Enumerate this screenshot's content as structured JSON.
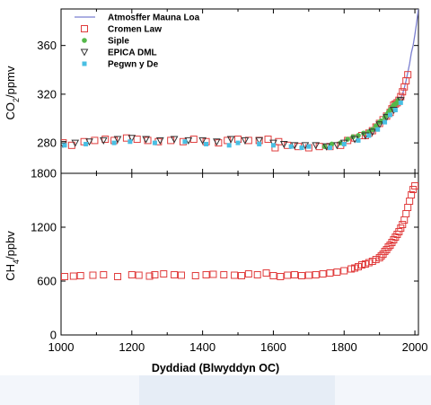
{
  "chart_data": [
    {
      "type": "scatter",
      "ylabel": "CO2/ppmv",
      "ylabel_main": "CO",
      "ylabel_sub": "2",
      "ylabel_unit": "/ppmv",
      "xlim": [
        1000,
        2010
      ],
      "ylim": [
        255,
        390
      ],
      "yticks": [
        280,
        320,
        360
      ],
      "ytick_labels": [
        "280",
        "320",
        "360"
      ],
      "legend_position": "top-center",
      "series": [
        {
          "name": "Atmosffer Mauna Loa",
          "marker": "line",
          "color": "#7b7fd0",
          "points": [
            [
              1958,
              315
            ],
            [
              1965,
              320
            ],
            [
              1970,
              325
            ],
            [
              1975,
              331
            ],
            [
              1980,
              338
            ],
            [
              1985,
              345
            ],
            [
              1990,
              354
            ],
            [
              1995,
              360
            ],
            [
              2000,
              369
            ],
            [
              2005,
              379
            ],
            [
              2010,
              390
            ]
          ]
        },
        {
          "name": "Cromen Law",
          "marker": "open-square",
          "color": "#e03c3c",
          "points": [
            [
              1006,
              280
            ],
            [
              1030,
              278
            ],
            [
              1065,
              281
            ],
            [
              1095,
              282
            ],
            [
              1125,
              283
            ],
            [
              1150,
              282
            ],
            [
              1185,
              284
            ],
            [
              1215,
              283
            ],
            [
              1245,
              282
            ],
            [
              1275,
              281
            ],
            [
              1310,
              282
            ],
            [
              1345,
              281
            ],
            [
              1375,
              283
            ],
            [
              1410,
              281
            ],
            [
              1445,
              280
            ],
            [
              1470,
              282
            ],
            [
              1500,
              283
            ],
            [
              1530,
              282
            ],
            [
              1560,
              282
            ],
            [
              1585,
              283
            ],
            [
              1605,
              276
            ],
            [
              1615,
              281
            ],
            [
              1640,
              278
            ],
            [
              1670,
              277
            ],
            [
              1700,
              276
            ],
            [
              1730,
              277
            ],
            [
              1760,
              277
            ],
            [
              1790,
              278
            ],
            [
              1810,
              282
            ],
            [
              1830,
              284
            ],
            [
              1850,
              286
            ],
            [
              1860,
              286
            ],
            [
              1870,
              288
            ],
            [
              1880,
              290
            ],
            [
              1890,
              293
            ],
            [
              1900,
              296
            ],
            [
              1910,
              299
            ],
            [
              1920,
              302
            ],
            [
              1930,
              305
            ],
            [
              1935,
              308
            ],
            [
              1940,
              311
            ],
            [
              1945,
              312
            ],
            [
              1950,
              313
            ],
            [
              1955,
              315
            ],
            [
              1960,
              318
            ],
            [
              1965,
              322
            ],
            [
              1970,
              326
            ],
            [
              1975,
              331
            ],
            [
              1980,
              336
            ]
          ]
        },
        {
          "name": "Siple",
          "marker": "filled-circle",
          "color": "#55b84a",
          "points": [
            [
              1745,
              277
            ],
            [
              1765,
              279
            ],
            [
              1790,
              280
            ],
            [
              1810,
              283
            ],
            [
              1825,
              285
            ],
            [
              1840,
              286
            ],
            [
              1855,
              288
            ],
            [
              1870,
              289
            ],
            [
              1880,
              291
            ],
            [
              1890,
              294
            ],
            [
              1900,
              297
            ],
            [
              1905,
              298
            ],
            [
              1915,
              301
            ],
            [
              1920,
              303
            ],
            [
              1925,
              305
            ],
            [
              1930,
              307
            ],
            [
              1935,
              309
            ],
            [
              1940,
              311
            ],
            [
              1945,
              312
            ],
            [
              1950,
              313
            ],
            [
              1953,
              315
            ]
          ]
        },
        {
          "name": "EPICA DML",
          "marker": "open-triangle-down",
          "color": "#333333",
          "points": [
            [
              1005,
              279
            ],
            [
              1040,
              280
            ],
            [
              1080,
              281
            ],
            [
              1120,
              282
            ],
            [
              1160,
              283
            ],
            [
              1200,
              284
            ],
            [
              1240,
              283
            ],
            [
              1280,
              282
            ],
            [
              1320,
              283
            ],
            [
              1360,
              282
            ],
            [
              1400,
              282
            ],
            [
              1440,
              281
            ],
            [
              1480,
              283
            ],
            [
              1520,
              282
            ],
            [
              1560,
              282
            ],
            [
              1600,
              280
            ],
            [
              1630,
              279
            ],
            [
              1660,
              278
            ],
            [
              1690,
              278
            ],
            [
              1720,
              278
            ],
            [
              1750,
              277
            ],
            [
              1780,
              278
            ],
            [
              1800,
              280
            ],
            [
              1830,
              283
            ],
            [
              1860,
              286
            ],
            [
              1880,
              289
            ],
            [
              1900,
              295
            ],
            [
              1920,
              301
            ],
            [
              1940,
              307
            ],
            [
              1960,
              315
            ]
          ]
        },
        {
          "name": "Pegwn y De",
          "marker": "filled-square",
          "color": "#49bfe3",
          "points": [
            [
              1010,
              278
            ],
            [
              1070,
              279
            ],
            [
              1150,
              280
            ],
            [
              1195,
              281
            ],
            [
              1265,
              280
            ],
            [
              1350,
              281
            ],
            [
              1410,
              279
            ],
            [
              1475,
              278
            ],
            [
              1500,
              280
            ],
            [
              1560,
              279
            ],
            [
              1600,
              278
            ],
            [
              1650,
              277
            ],
            [
              1680,
              276
            ],
            [
              1700,
              277
            ],
            [
              1760,
              276
            ],
            [
              1800,
              279
            ],
            [
              1840,
              282
            ],
            [
              1870,
              286
            ],
            [
              1895,
              291
            ],
            [
              1915,
              297
            ],
            [
              1930,
              303
            ],
            [
              1945,
              307
            ],
            [
              1960,
              313
            ]
          ]
        }
      ]
    },
    {
      "type": "scatter",
      "ylabel": "CH4/ppbv",
      "ylabel_main": "CH",
      "ylabel_sub": "4",
      "ylabel_unit": "/ppbv",
      "xlim": [
        1000,
        2010
      ],
      "ylim": [
        0,
        1800
      ],
      "yticks": [
        0,
        600,
        1200,
        1800
      ],
      "ytick_labels": [
        "0",
        "600",
        "1200",
        "1800"
      ],
      "xticks": [
        1000,
        1200,
        1400,
        1600,
        1800,
        2000
      ],
      "xtick_labels": [
        "1000",
        "1200",
        "1400",
        "1600",
        "1800",
        "2000"
      ],
      "xlabel": "Dyddiad (Blwyddyn OC)",
      "series": [
        {
          "name": "Cromen Law",
          "marker": "open-square",
          "color": "#e03c3c",
          "points": [
            [
              1010,
              650
            ],
            [
              1035,
              655
            ],
            [
              1055,
              660
            ],
            [
              1090,
              665
            ],
            [
              1120,
              670
            ],
            [
              1160,
              650
            ],
            [
              1200,
              670
            ],
            [
              1220,
              665
            ],
            [
              1250,
              655
            ],
            [
              1265,
              670
            ],
            [
              1290,
              680
            ],
            [
              1320,
              670
            ],
            [
              1340,
              665
            ],
            [
              1380,
              660
            ],
            [
              1410,
              670
            ],
            [
              1430,
              675
            ],
            [
              1460,
              670
            ],
            [
              1490,
              665
            ],
            [
              1510,
              660
            ],
            [
              1530,
              680
            ],
            [
              1555,
              670
            ],
            [
              1580,
              690
            ],
            [
              1600,
              660
            ],
            [
              1620,
              650
            ],
            [
              1640,
              665
            ],
            [
              1660,
              670
            ],
            [
              1680,
              660
            ],
            [
              1700,
              665
            ],
            [
              1720,
              670
            ],
            [
              1740,
              680
            ],
            [
              1760,
              690
            ],
            [
              1780,
              700
            ],
            [
              1800,
              715
            ],
            [
              1820,
              735
            ],
            [
              1830,
              745
            ],
            [
              1840,
              760
            ],
            [
              1850,
              780
            ],
            [
              1860,
              790
            ],
            [
              1870,
              805
            ],
            [
              1880,
              820
            ],
            [
              1890,
              840
            ],
            [
              1900,
              860
            ],
            [
              1905,
              880
            ],
            [
              1910,
              900
            ],
            [
              1915,
              930
            ],
            [
              1920,
              950
            ],
            [
              1925,
              980
            ],
            [
              1930,
              1000
            ],
            [
              1935,
              1030
            ],
            [
              1940,
              1060
            ],
            [
              1945,
              1090
            ],
            [
              1950,
              1120
            ],
            [
              1955,
              1150
            ],
            [
              1960,
              1190
            ],
            [
              1965,
              1230
            ],
            [
              1970,
              1280
            ],
            [
              1975,
              1350
            ],
            [
              1980,
              1420
            ],
            [
              1985,
              1490
            ],
            [
              1990,
              1560
            ],
            [
              1995,
              1620
            ],
            [
              2000,
              1660
            ]
          ]
        }
      ]
    }
  ]
}
